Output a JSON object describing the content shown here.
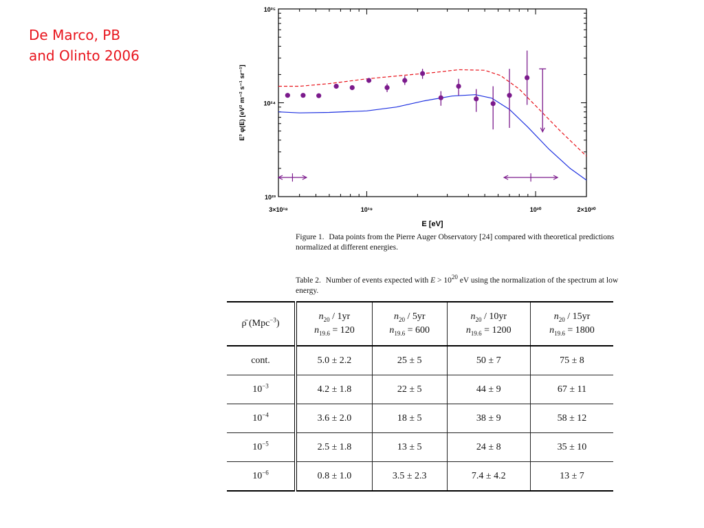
{
  "credit": {
    "line1": "De Marco, PB",
    "line2": "and Olinto 2006"
  },
  "colors": {
    "credit": "#e8141c",
    "data_points": "#7b1a8c",
    "curve_low": "#e8141c",
    "curve_high": "#1c2fe0"
  },
  "chart_data": {
    "type": "scatter",
    "xlabel": "E [eV]",
    "ylabel": "E³ φ(E) [eV² m⁻² s⁻¹ sr⁻¹]",
    "x_scale": "log",
    "y_scale": "log",
    "xlim": [
      3e+18,
      2e+20
    ],
    "ylim": [
      1e+23,
      1e+25
    ],
    "x_tick_labels": [
      "3×10¹⁸",
      "10¹⁹",
      "10²⁰",
      "2×10²⁰"
    ],
    "y_tick_labels": [
      "10²³",
      "10²⁴",
      "10²⁵"
    ],
    "grid": false,
    "series": [
      {
        "kind": "points",
        "x": [
          3.4e+18,
          4.2e+18,
          5.2e+18,
          6.6e+18,
          8.2e+18,
          1.03e+19,
          1.32e+19,
          1.68e+19,
          2.14e+19,
          2.75e+19,
          3.5e+19,
          4.45e+19,
          5.6e+19,
          7e+19,
          8.9e+19
        ],
        "y": [
          1.2e+24,
          1.2e+24,
          1.19e+24,
          1.5e+24,
          1.45e+24,
          1.73e+24,
          1.45e+24,
          1.73e+24,
          2.05e+24,
          1.13e+24,
          1.5e+24,
          1.1e+24,
          9.8e+23,
          1.2e+24,
          1.85e+24
        ],
        "y_low": [
          null,
          null,
          null,
          null,
          null,
          null,
          1.3e+24,
          1.55e+24,
          1.8e+24,
          9.3e+23,
          1.2e+24,
          8e+23,
          5.2e+23,
          5.4e+23,
          9.5e+23
        ],
        "y_high": [
          null,
          null,
          null,
          null,
          null,
          null,
          1.6e+24,
          1.93e+24,
          2.3e+24,
          1.33e+24,
          1.8e+24,
          1.4e+24,
          1.5e+24,
          2.3e+24,
          3.6e+24
        ]
      },
      {
        "kind": "upper_limit",
        "x": [
          1.1e+20
        ],
        "y_high": [
          2.3e+24
        ],
        "y_low": [
          4.9e+23
        ]
      },
      {
        "kind": "line",
        "style": "dashed",
        "x": [
          3e+18,
          4e+18,
          6e+18,
          1e+19,
          1.6e+19,
          2.5e+19,
          3.5e+19,
          5e+19,
          6.2e+19,
          8e+19,
          1.05e+20,
          1.4e+20,
          2e+20
        ],
        "y": [
          1.5e+24,
          1.5e+24,
          1.6e+24,
          1.8e+24,
          1.95e+24,
          2.1e+24,
          2.25e+24,
          2.22e+24,
          1.95e+24,
          1.4e+24,
          8.5e+23,
          5e+23,
          2.7e+23
        ]
      },
      {
        "kind": "line",
        "style": "solid",
        "x": [
          3e+18,
          4e+18,
          6e+18,
          1e+19,
          1.5e+19,
          2.2e+19,
          3.2e+19,
          4.4e+19,
          5.5e+19,
          7e+19,
          9e+19,
          1.2e+20,
          1.6e+20,
          2e+20
        ],
        "y": [
          8e+23,
          7.8e+23,
          7.9e+23,
          8.2e+23,
          9e+23,
          1.05e+24,
          1.18e+24,
          1.22e+24,
          1.12e+24,
          8.5e+23,
          5.5e+23,
          3.2e+23,
          2e+23,
          1.5e+23
        ]
      },
      {
        "kind": "range_arrow",
        "x": [
          3e+18,
          4.4e+18
        ],
        "y": 1.6e+23
      },
      {
        "kind": "range_arrow",
        "x": [
          6.5e+19,
          1.35e+20
        ],
        "y": 1.6e+23
      }
    ]
  },
  "figure_caption": {
    "label": "Figure 1.",
    "text": "Data points from the Pierre Auger Observatory [24] compared with theoretical predictions normalized at different energies."
  },
  "table_caption": {
    "label": "Table 2.",
    "text_a": "Number of events expected with",
    "expr_var": "E",
    "expr_op": " > 10",
    "expr_exp": "20",
    "text_b": " eV using the normalization of the spectrum at low energy."
  },
  "table": {
    "header": {
      "rho": "ρ̄ (Mpc",
      "rho_exp": "−3",
      "rho_close": ")",
      "cols": [
        {
          "n": "n",
          "n_sub": "20",
          "years": " / 1yr",
          "norm": "n",
          "norm_sub": "19.6",
          "norm_val": " = 120"
        },
        {
          "n": "n",
          "n_sub": "20",
          "years": " / 5yr",
          "norm": "n",
          "norm_sub": "19.6",
          "norm_val": " = 600"
        },
        {
          "n": "n",
          "n_sub": "20",
          "years": " / 10yr",
          "norm": "n",
          "norm_sub": "19.6",
          "norm_val": " = 1200"
        },
        {
          "n": "n",
          "n_sub": "20",
          "years": " / 15yr",
          "norm": "n",
          "norm_sub": "19.6",
          "norm_val": " = 1800"
        }
      ]
    },
    "rows": [
      {
        "base": "cont.",
        "exp": "",
        "cells": [
          "5.0 ± 2.2",
          "25 ± 5",
          "50 ± 7",
          "75 ± 8"
        ]
      },
      {
        "base": "10",
        "exp": "−3",
        "cells": [
          "4.2 ± 1.8",
          "22 ± 5",
          "44 ± 9",
          "67 ± 11"
        ]
      },
      {
        "base": "10",
        "exp": "−4",
        "cells": [
          "3.6 ± 2.0",
          "18 ± 5",
          "38 ± 9",
          "58 ± 12"
        ]
      },
      {
        "base": "10",
        "exp": "−5",
        "cells": [
          "2.5 ± 1.8",
          "13 ± 5",
          "24 ± 8",
          "35 ± 10"
        ]
      },
      {
        "base": "10",
        "exp": "−6",
        "cells": [
          "0.8 ± 1.0",
          "3.5 ± 2.3",
          "7.4 ± 4.2",
          "13 ± 7"
        ]
      }
    ]
  }
}
